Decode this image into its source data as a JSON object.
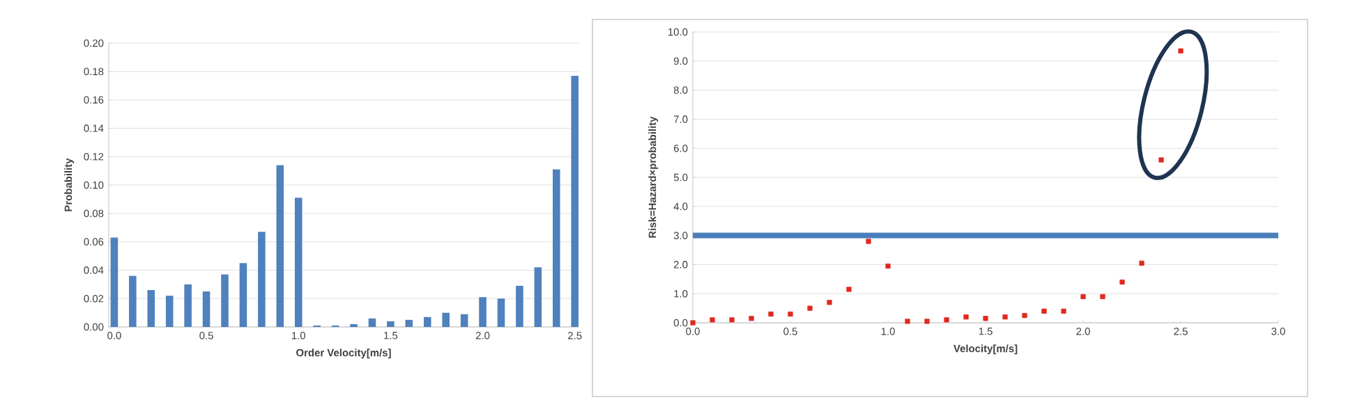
{
  "chart_data": [
    {
      "type": "bar",
      "xlabel": "Order Velocity[m/s]",
      "ylabel": "Probability",
      "color": "#4f81bd",
      "grid": "y",
      "x": [
        0.0,
        0.1,
        0.2,
        0.3,
        0.4,
        0.5,
        0.6,
        0.7,
        0.8,
        0.9,
        1.0,
        1.1,
        1.2,
        1.3,
        1.4,
        1.5,
        1.6,
        1.7,
        1.8,
        1.9,
        2.0,
        2.1,
        2.2,
        2.3,
        2.4,
        2.5
      ],
      "values": [
        0.063,
        0.036,
        0.026,
        0.022,
        0.03,
        0.025,
        0.037,
        0.045,
        0.067,
        0.114,
        0.091,
        0.001,
        0.001,
        0.002,
        0.006,
        0.004,
        0.005,
        0.007,
        0.01,
        0.009,
        0.021,
        0.02,
        0.029,
        0.042,
        0.111,
        0.177
      ],
      "xlim": [
        -0.03,
        2.52
      ],
      "xticks": [
        {
          "value": 0,
          "label": "0.0"
        },
        {
          "value": 0.5,
          "label": "0.5"
        },
        {
          "value": 1,
          "label": "1.0"
        },
        {
          "value": 1.5,
          "label": "1.5"
        },
        {
          "value": 2,
          "label": "2.0"
        },
        {
          "value": 2.5,
          "label": "2.5"
        }
      ],
      "ylim": [
        0,
        0.2
      ],
      "yticks": [
        {
          "value": 0,
          "label": "0.00"
        },
        {
          "value": 0.02,
          "label": "0.02"
        },
        {
          "value": 0.04,
          "label": "0.04"
        },
        {
          "value": 0.06,
          "label": "0.06"
        },
        {
          "value": 0.08,
          "label": "0.08"
        },
        {
          "value": 0.1,
          "label": "0.10"
        },
        {
          "value": 0.12,
          "label": "0.12"
        },
        {
          "value": 0.14,
          "label": "0.14"
        },
        {
          "value": 0.16,
          "label": "0.16"
        },
        {
          "value": 0.18,
          "label": "0.18"
        },
        {
          "value": 0.2,
          "label": "0.20"
        }
      ]
    },
    {
      "type": "scatter",
      "xlabel": "Velocity[m/s]",
      "ylabel": "Risk=Hazard×probability",
      "color": "#e0281e",
      "marker": "square",
      "grid": "y",
      "x": [
        0.0,
        0.1,
        0.2,
        0.3,
        0.4,
        0.5,
        0.6,
        0.7,
        0.8,
        0.9,
        1.0,
        1.1,
        1.2,
        1.3,
        1.4,
        1.5,
        1.6,
        1.7,
        1.8,
        1.9,
        2.0,
        2.1,
        2.2,
        2.3,
        2.4,
        2.5
      ],
      "values": [
        0.0,
        0.1,
        0.1,
        0.15,
        0.3,
        0.3,
        0.5,
        0.7,
        1.15,
        2.8,
        1.95,
        0.05,
        0.05,
        0.1,
        0.2,
        0.15,
        0.2,
        0.25,
        0.4,
        0.4,
        0.9,
        0.9,
        1.4,
        2.05,
        5.6,
        9.35
      ],
      "xlim": [
        0,
        3
      ],
      "xticks": [
        {
          "value": 0,
          "label": "0.0"
        },
        {
          "value": 0.5,
          "label": "0.5"
        },
        {
          "value": 1,
          "label": "1.0"
        },
        {
          "value": 1.5,
          "label": "1.5"
        },
        {
          "value": 2,
          "label": "2.0"
        },
        {
          "value": 2.5,
          "label": "2.5"
        },
        {
          "value": 3,
          "label": "3.0"
        }
      ],
      "ylim": [
        0,
        10
      ],
      "yticks": [
        {
          "value": 0,
          "label": "0.0"
        },
        {
          "value": 1,
          "label": "1.0"
        },
        {
          "value": 2,
          "label": "2.0"
        },
        {
          "value": 3,
          "label": "3.0"
        },
        {
          "value": 4,
          "label": "4.0"
        },
        {
          "value": 5,
          "label": "5.0"
        },
        {
          "value": 6,
          "label": "6.0"
        },
        {
          "value": 7,
          "label": "7.0"
        },
        {
          "value": 8,
          "label": "8.0"
        },
        {
          "value": 9,
          "label": "9.0"
        },
        {
          "value": 10,
          "label": "10.0"
        }
      ],
      "ref_lines": [
        {
          "axis": "y",
          "value": 3,
          "color": "#4a7ebb"
        }
      ]
    }
  ]
}
